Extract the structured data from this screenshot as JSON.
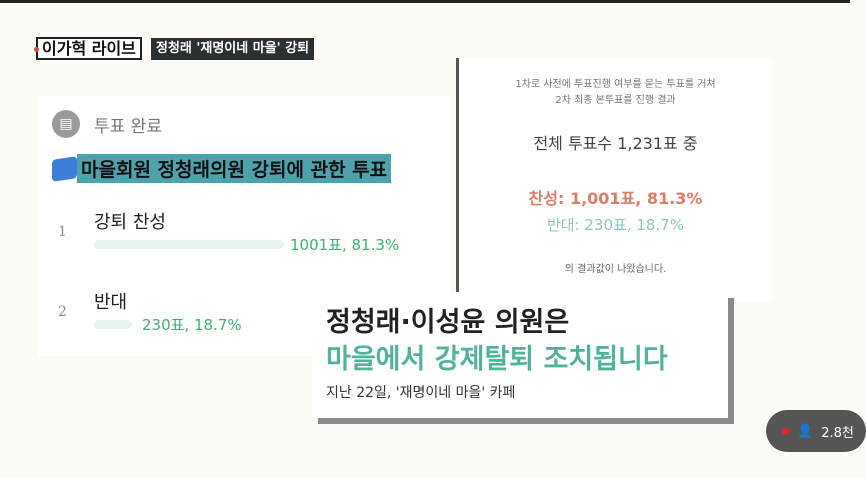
{
  "broadcast": {
    "program": "이가혁 라이브",
    "headline": "정청래 '재명이네 마을' 강퇴"
  },
  "poll": {
    "status": "투표 완료",
    "status_icon": "vote-doc-icon",
    "title": "마을회원 정청래의원 강퇴에 관한 투표",
    "options": [
      {
        "num": "1",
        "label": "강퇴 찬성",
        "value": "1001표, 81.3%",
        "percent": 81.3
      },
      {
        "num": "2",
        "label": "반대",
        "value": "230표, 18.7%",
        "percent": 18.7
      }
    ]
  },
  "result": {
    "line1": "1차로 사전에 투표진행 여부를 묻는 투표를 거쳐",
    "line2": "2차 최종 본투표를 진행 결과",
    "total": "전체 투표수 1,231표 중",
    "yes": "찬성: 1,001표, 81.3%",
    "no": "반대: 230표, 18.7%",
    "footer": "의 결과값이 나왔습니다."
  },
  "caption": {
    "line1": "정청래·이성윤 의원은",
    "line2": "마을에서 강제탈퇴 조치됩니다",
    "source": "지난 22일, '재명이네 마을' 카페"
  },
  "live": {
    "viewers": "2.8천"
  },
  "colors": {
    "highlight": "#4da3ab",
    "accent": "#4fb39d",
    "yes": "#e07b66",
    "no": "#8cc8c3"
  }
}
